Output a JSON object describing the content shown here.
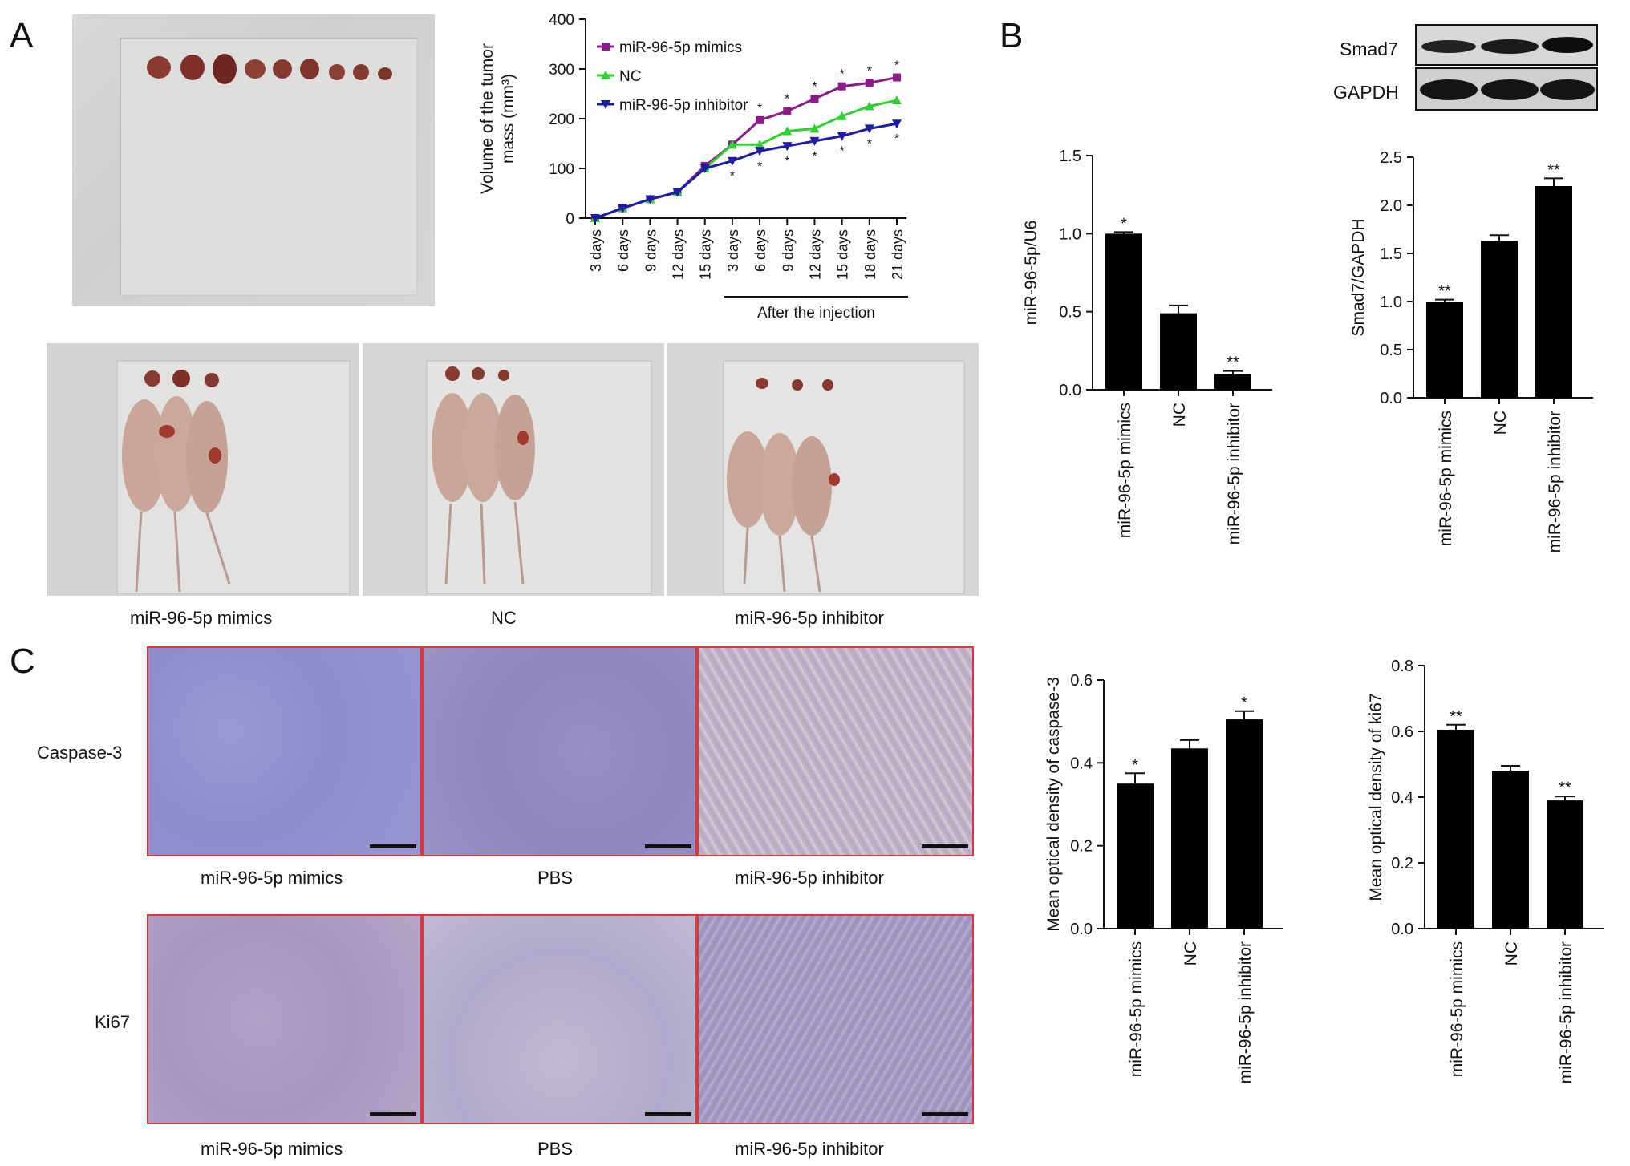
{
  "panels": {
    "a": "A",
    "b": "B",
    "c": "C"
  },
  "photo_labels": {
    "mice": [
      "miR-96-5p mimics",
      "NC",
      "miR-96-5p inhibitor"
    ],
    "ihc_row1": [
      "miR-96-5p mimics",
      "PBS",
      "miR-96-5p inhibitor"
    ],
    "ihc_row2": [
      "miR-96-5p mimics",
      "PBS",
      "miR-96-5p inhibitor"
    ],
    "ihc_rows": [
      "Caspase-3",
      "Ki67"
    ]
  },
  "colors": {
    "mimics": "#8b1a8b",
    "nc": "#2fd12f",
    "inhibitor": "#1c1ca8",
    "bar": "#000000",
    "ihc_border": "#d63a3a"
  },
  "western": {
    "bands": [
      "Smad7",
      "GAPDH"
    ]
  },
  "chart_data": [
    {
      "id": "growth",
      "type": "line",
      "ylabel": "Volume of the tumor mass (mm³)",
      "ylabel_line1": "Volume of the tumor",
      "ylabel_line2": "mass (mm³)",
      "x": [
        "3 days",
        "6 days",
        "9 days",
        "12 days",
        "15 days",
        "3 days",
        "6 days",
        "9 days",
        "12 days",
        "15 days",
        "18 days",
        "21 days"
      ],
      "xgroup_label": "After the injection",
      "ylim": [
        0,
        400
      ],
      "yticks": [
        0,
        100,
        200,
        300,
        400
      ],
      "legend": "top-left",
      "series": [
        {
          "name": "miR-96-5p mimics",
          "values": [
            0,
            20,
            38,
            52,
            105,
            148,
            197,
            215,
            240,
            265,
            272,
            283
          ]
        },
        {
          "name": "NC",
          "values": [
            0,
            20,
            38,
            52,
            100,
            148,
            148,
            175,
            180,
            205,
            225,
            237
          ]
        },
        {
          "name": "miR-96-5p inhibitor",
          "values": [
            0,
            20,
            38,
            52,
            100,
            115,
            135,
            145,
            155,
            165,
            180,
            190
          ]
        }
      ]
    },
    {
      "id": "mir",
      "type": "bar",
      "ylabel": "miR-96-5p/U6",
      "categories": [
        "miR-96-5p mimics",
        "NC",
        "miR-96-5p inhibitor"
      ],
      "values": [
        1.0,
        0.49,
        0.1
      ],
      "errors": [
        0.01,
        0.05,
        0.02
      ],
      "significance": [
        "*",
        "",
        "**"
      ],
      "ylim": [
        0,
        1.5
      ],
      "yticks": [
        "0.0",
        "0.5",
        "1.0",
        "1.5"
      ]
    },
    {
      "id": "smad7",
      "type": "bar",
      "ylabel": "Smad7/GAPDH",
      "categories": [
        "miR-96-5p mimics",
        "NC",
        "miR-96-5p inhibitor"
      ],
      "values": [
        1.0,
        1.63,
        2.2
      ],
      "errors": [
        0.02,
        0.06,
        0.08
      ],
      "significance": [
        "**",
        "",
        "**"
      ],
      "ylim": [
        0,
        2.5
      ],
      "yticks": [
        "0.0",
        "0.5",
        "1.0",
        "1.5",
        "2.0",
        "2.5"
      ]
    },
    {
      "id": "casp",
      "type": "bar",
      "ylabel": "Mean optical density of caspase-3",
      "categories": [
        "miR-96-5p mimics",
        "NC",
        "miR-96-5p inhibitor"
      ],
      "values": [
        0.35,
        0.435,
        0.505
      ],
      "errors": [
        0.025,
        0.02,
        0.02
      ],
      "significance": [
        "*",
        "",
        "*"
      ],
      "ylim": [
        0,
        0.6
      ],
      "yticks": [
        "0.0",
        "0.2",
        "0.4",
        "0.6"
      ]
    },
    {
      "id": "ki67",
      "type": "bar",
      "ylabel": "Mean optical density of ki67",
      "categories": [
        "miR-96-5p mimics",
        "NC",
        "miR-96-5p inhibitor"
      ],
      "values": [
        0.605,
        0.48,
        0.39
      ],
      "errors": [
        0.015,
        0.015,
        0.012
      ],
      "significance": [
        "**",
        "",
        "**"
      ],
      "ylim": [
        0,
        0.8
      ],
      "yticks": [
        "0.0",
        "0.2",
        "0.4",
        "0.6",
        "0.8"
      ]
    }
  ]
}
